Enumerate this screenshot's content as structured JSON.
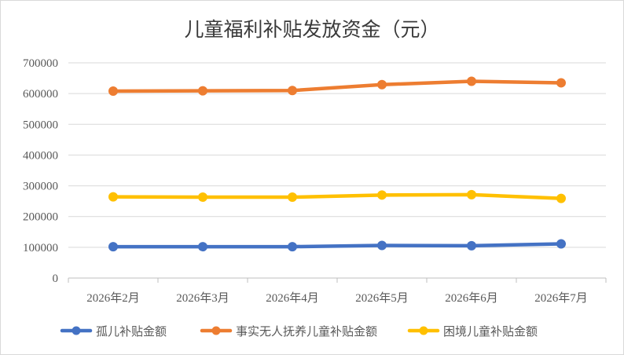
{
  "chart_data": {
    "type": "line",
    "title": "儿童福利补贴发放资金（元）",
    "xlabel": "",
    "ylabel": "",
    "categories": [
      "2026年2月",
      "2026年3月",
      "2026年4月",
      "2026年5月",
      "2026年6月",
      "2026年7月"
    ],
    "ylim": [
      0,
      700000
    ],
    "yticks": [
      0,
      100000,
      200000,
      300000,
      400000,
      500000,
      600000,
      700000
    ],
    "ytick_labels": [
      "0",
      "100000",
      "200000",
      "300000",
      "400000",
      "500000",
      "600000",
      "700000"
    ],
    "grid": true,
    "legend_position": "bottom",
    "series": [
      {
        "name": "孤儿补贴金额",
        "color": "#4472c4",
        "values": [
          102000,
          102000,
          102000,
          106000,
          105000,
          111000
        ]
      },
      {
        "name": "事实无人抚养儿童补贴金额",
        "color": "#ed7d31",
        "values": [
          608000,
          609000,
          610000,
          629000,
          640000,
          635000
        ]
      },
      {
        "name": "困境儿童补贴金额",
        "color": "#ffc000",
        "values": [
          264000,
          263000,
          263000,
          270000,
          271000,
          259000
        ]
      }
    ]
  }
}
